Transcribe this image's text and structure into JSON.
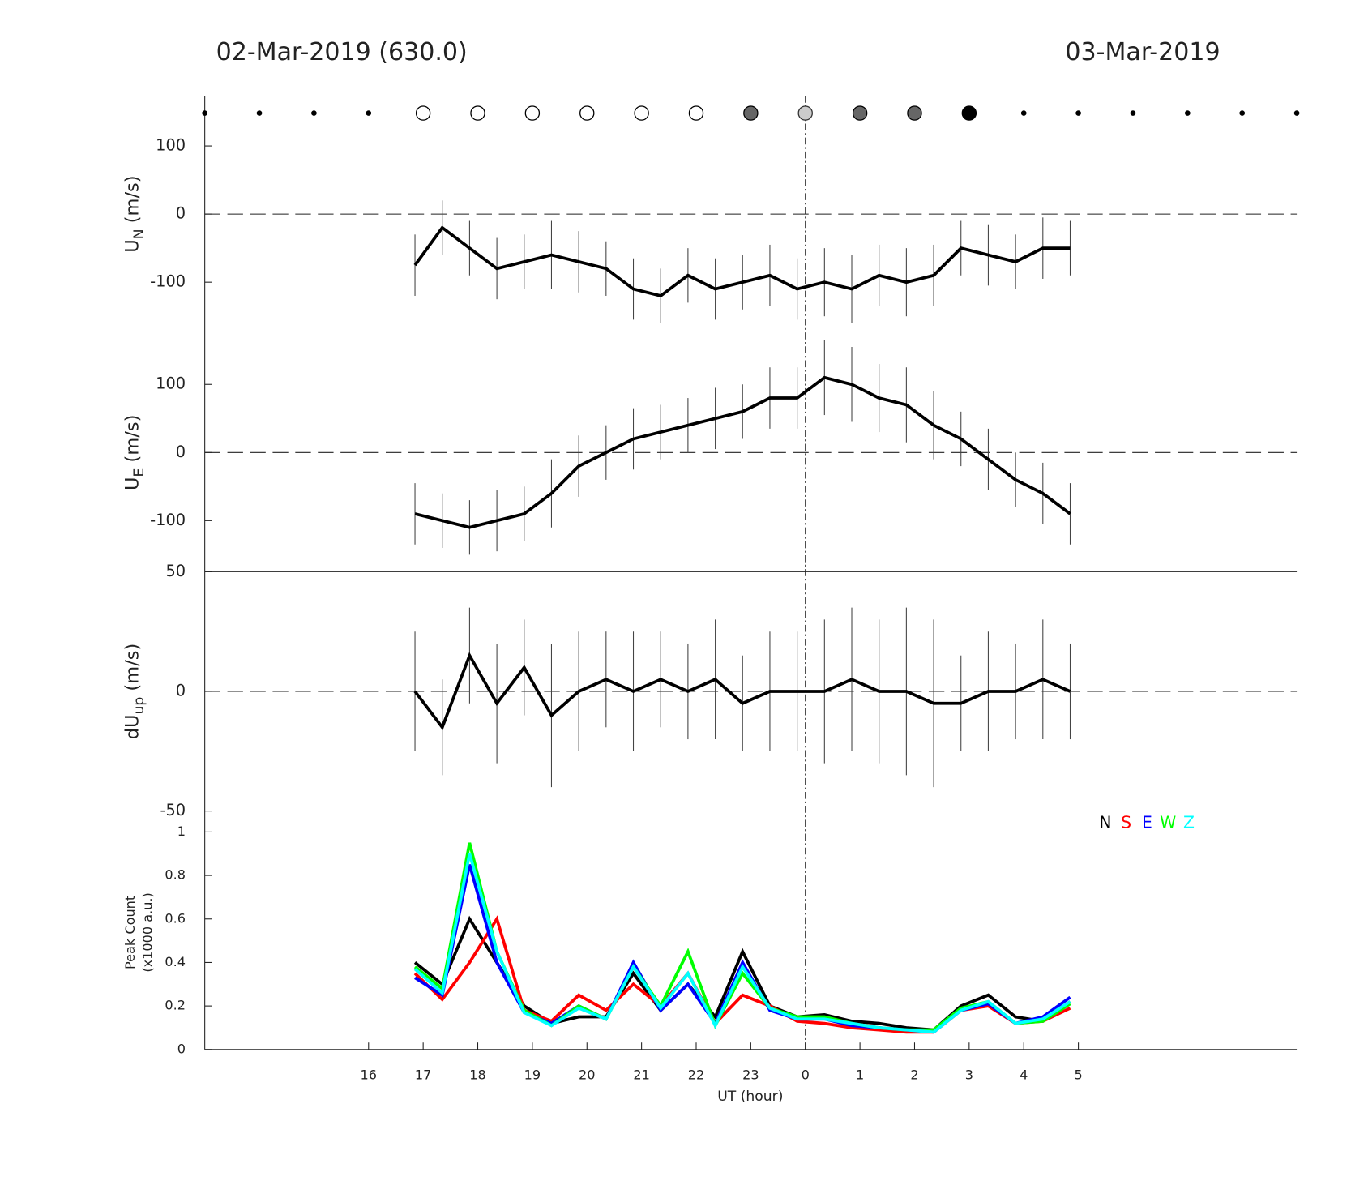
{
  "title_left": "02-Mar-2019 (630.0)",
  "title_right": "03-Mar-2019",
  "xlabel": "UT (hour)",
  "xlim": [
    13,
    33
  ],
  "xticks": [
    16,
    17,
    18,
    19,
    20,
    21,
    22,
    23,
    {
      "value": 24,
      "label": "0"
    },
    {
      "value": 25,
      "label": "1"
    },
    {
      "value": 26,
      "label": "2"
    },
    {
      "value": 27,
      "label": "3"
    },
    {
      "value": 28,
      "label": "4"
    },
    {
      "value": 29,
      "label": "5"
    }
  ],
  "vline": 24,
  "markers": {
    "x": [
      13,
      14,
      15,
      16,
      17,
      18,
      19,
      20,
      21,
      22,
      23,
      24,
      25,
      26,
      27,
      28,
      29,
      30,
      31,
      32,
      33
    ],
    "style": [
      "dot",
      "dot",
      "dot",
      "dot",
      "open",
      "open",
      "open",
      "open",
      "open",
      "open",
      "gray",
      "lightgray",
      "gray",
      "gray",
      "black",
      "dot",
      "dot",
      "dot",
      "dot",
      "dot",
      "dot"
    ]
  },
  "chart_data": [
    {
      "type": "errorbar",
      "ylabel": "U",
      "ylabel_sub": "N",
      "ylabel_unit": "(m/s)",
      "ylim": [
        -175,
        175
      ],
      "yticks": [
        -100,
        0,
        100
      ],
      "refline": 0,
      "x": [
        16.85,
        17.35,
        17.85,
        18.35,
        18.85,
        19.35,
        19.85,
        20.35,
        20.85,
        21.35,
        21.85,
        22.35,
        22.85,
        23.35,
        23.85,
        24.35,
        24.85,
        25.35,
        25.85,
        26.35,
        26.85,
        27.35,
        27.85,
        28.35,
        28.85
      ],
      "series": [
        {
          "color": "#000000",
          "values": [
            -75,
            -20,
            -50,
            -80,
            -70,
            -60,
            -70,
            -80,
            -110,
            -120,
            -90,
            -110,
            -100,
            -90,
            -110,
            -100,
            -110,
            -90,
            -100,
            -90,
            -50,
            -60,
            -70,
            -50,
            -50
          ],
          "errors": [
            45,
            40,
            40,
            45,
            40,
            50,
            45,
            40,
            45,
            40,
            40,
            45,
            40,
            45,
            45,
            50,
            50,
            45,
            50,
            45,
            40,
            45,
            40,
            45,
            40
          ]
        }
      ]
    },
    {
      "type": "errorbar",
      "ylabel": "U",
      "ylabel_sub": "E",
      "ylabel_unit": "(m/s)",
      "ylim": [
        -175,
        175
      ],
      "yticks": [
        -100,
        0,
        100
      ],
      "refline": 0,
      "x": [
        16.85,
        17.35,
        17.85,
        18.35,
        18.85,
        19.35,
        19.85,
        20.35,
        20.85,
        21.35,
        21.85,
        22.35,
        22.85,
        23.35,
        23.85,
        24.35,
        24.85,
        25.35,
        25.85,
        26.35,
        26.85,
        27.35,
        27.85,
        28.35,
        28.85
      ],
      "series": [
        {
          "color": "#000000",
          "values": [
            -90,
            -100,
            -110,
            -100,
            -90,
            -60,
            -20,
            0,
            20,
            30,
            40,
            50,
            60,
            80,
            80,
            110,
            100,
            80,
            70,
            40,
            20,
            -10,
            -40,
            -60,
            -90
          ],
          "errors": [
            45,
            40,
            40,
            45,
            40,
            50,
            45,
            40,
            45,
            40,
            40,
            45,
            40,
            45,
            45,
            55,
            55,
            50,
            55,
            50,
            40,
            45,
            40,
            45,
            45
          ]
        }
      ]
    },
    {
      "type": "errorbar",
      "ylabel": "dU",
      "ylabel_sub": "up",
      "ylabel_unit": "(m/s)",
      "ylim": [
        -50,
        50
      ],
      "yticks": [
        -50,
        0,
        50
      ],
      "refline": 0,
      "x": [
        16.85,
        17.35,
        17.85,
        18.35,
        18.85,
        19.35,
        19.85,
        20.35,
        20.85,
        21.35,
        21.85,
        22.35,
        22.85,
        23.35,
        23.85,
        24.35,
        24.85,
        25.35,
        25.85,
        26.35,
        26.85,
        27.35,
        27.85,
        28.35,
        28.85
      ],
      "series": [
        {
          "color": "#000000",
          "values": [
            0,
            -15,
            15,
            -5,
            10,
            -10,
            0,
            5,
            0,
            5,
            0,
            5,
            -5,
            0,
            0,
            0,
            5,
            0,
            0,
            -5,
            -5,
            0,
            0,
            5,
            0
          ],
          "errors": [
            25,
            20,
            20,
            25,
            20,
            30,
            25,
            20,
            25,
            20,
            20,
            25,
            20,
            25,
            25,
            30,
            30,
            30,
            35,
            35,
            20,
            25,
            20,
            25,
            20
          ]
        }
      ]
    },
    {
      "type": "line",
      "ylabel": [
        "Peak Count",
        "(x1000 a.u.)"
      ],
      "ylim": [
        0,
        1.1
      ],
      "yticks": [
        0,
        0.2,
        0.4,
        0.6,
        0.8,
        1
      ],
      "x": [
        16.85,
        17.35,
        17.85,
        18.35,
        18.85,
        19.35,
        19.85,
        20.35,
        20.85,
        21.35,
        21.85,
        22.35,
        22.85,
        23.35,
        23.85,
        24.35,
        24.85,
        25.35,
        25.85,
        26.35,
        26.85,
        27.35,
        27.85,
        28.35,
        28.85
      ],
      "series": [
        {
          "name": "N",
          "color": "#000000",
          "values": [
            0.4,
            0.3,
            0.6,
            0.4,
            0.2,
            0.12,
            0.15,
            0.15,
            0.35,
            0.18,
            0.3,
            0.15,
            0.45,
            0.2,
            0.15,
            0.16,
            0.13,
            0.12,
            0.1,
            0.09,
            0.2,
            0.25,
            0.15,
            0.13,
            0.22
          ]
        },
        {
          "name": "S",
          "color": "#ff0000",
          "values": [
            0.35,
            0.23,
            0.4,
            0.6,
            0.18,
            0.13,
            0.25,
            0.18,
            0.3,
            0.2,
            0.35,
            0.12,
            0.25,
            0.2,
            0.13,
            0.12,
            0.1,
            0.09,
            0.08,
            0.08,
            0.18,
            0.2,
            0.12,
            0.13,
            0.19
          ]
        },
        {
          "name": "E",
          "color": "#0000ff",
          "values": [
            0.33,
            0.25,
            0.85,
            0.4,
            0.17,
            0.12,
            0.2,
            0.14,
            0.4,
            0.18,
            0.3,
            0.12,
            0.4,
            0.18,
            0.14,
            0.14,
            0.11,
            0.1,
            0.09,
            0.08,
            0.18,
            0.21,
            0.12,
            0.15,
            0.24
          ]
        },
        {
          "name": "W",
          "color": "#00ff00",
          "values": [
            0.38,
            0.28,
            0.95,
            0.45,
            0.18,
            0.11,
            0.2,
            0.14,
            0.38,
            0.2,
            0.45,
            0.11,
            0.35,
            0.19,
            0.15,
            0.15,
            0.12,
            0.1,
            0.09,
            0.09,
            0.19,
            0.22,
            0.12,
            0.13,
            0.21
          ]
        },
        {
          "name": "Z",
          "color": "#00ffff",
          "values": [
            0.37,
            0.26,
            0.9,
            0.45,
            0.17,
            0.11,
            0.19,
            0.14,
            0.38,
            0.19,
            0.35,
            0.11,
            0.38,
            0.19,
            0.14,
            0.14,
            0.12,
            0.1,
            0.09,
            0.08,
            0.18,
            0.22,
            0.12,
            0.14,
            0.22
          ]
        }
      ]
    }
  ]
}
